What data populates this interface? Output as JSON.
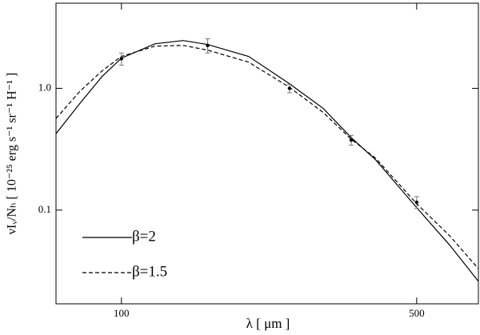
{
  "chart_data": {
    "type": "line",
    "xlabel": "λ [ μm ]",
    "ylabel": "νIᵥ/Nₕ [ 10⁻²⁵ erg s⁻¹ sr⁻¹ H⁻¹ ]",
    "xscale": "log",
    "yscale": "log",
    "xlim": [
      70,
      700
    ],
    "ylim": [
      0.017,
      5
    ],
    "xticks": [
      100,
      500
    ],
    "yticks": [
      0.1,
      {
        "value": 1,
        "label": "1.0"
      }
    ],
    "legend": "lower left",
    "series": [
      {
        "name": "β=2",
        "type": "line",
        "style": "solid",
        "color": "#000000",
        "x": [
          70,
          80,
          90,
          100,
          120,
          140,
          160,
          200,
          250,
          300,
          350,
          400,
          500,
          600,
          700
        ],
        "values": [
          0.424,
          0.763,
          1.25,
          1.77,
          2.32,
          2.47,
          2.29,
          1.83,
          1.09,
          0.687,
          0.393,
          0.258,
          0.105,
          0.051,
          0.026
        ]
      },
      {
        "name": "β=1.5",
        "type": "line",
        "style": "dashed",
        "color": "#000000",
        "x": [
          70,
          80,
          90,
          100,
          120,
          140,
          160,
          200,
          250,
          300,
          350,
          400,
          500,
          600,
          700
        ],
        "values": [
          0.565,
          0.956,
          1.39,
          1.83,
          2.22,
          2.25,
          2.06,
          1.64,
          1.02,
          0.636,
          0.382,
          0.266,
          0.113,
          0.061,
          0.033
        ]
      },
      {
        "type": "scatter",
        "color": "#000000",
        "x": [
          100,
          160,
          250,
          350,
          500
        ],
        "values": [
          1.75,
          2.25,
          1.0,
          0.376,
          0.116
        ],
        "errors": [
          0.2,
          0.3,
          0.08,
          0.035,
          0.013
        ]
      }
    ]
  }
}
